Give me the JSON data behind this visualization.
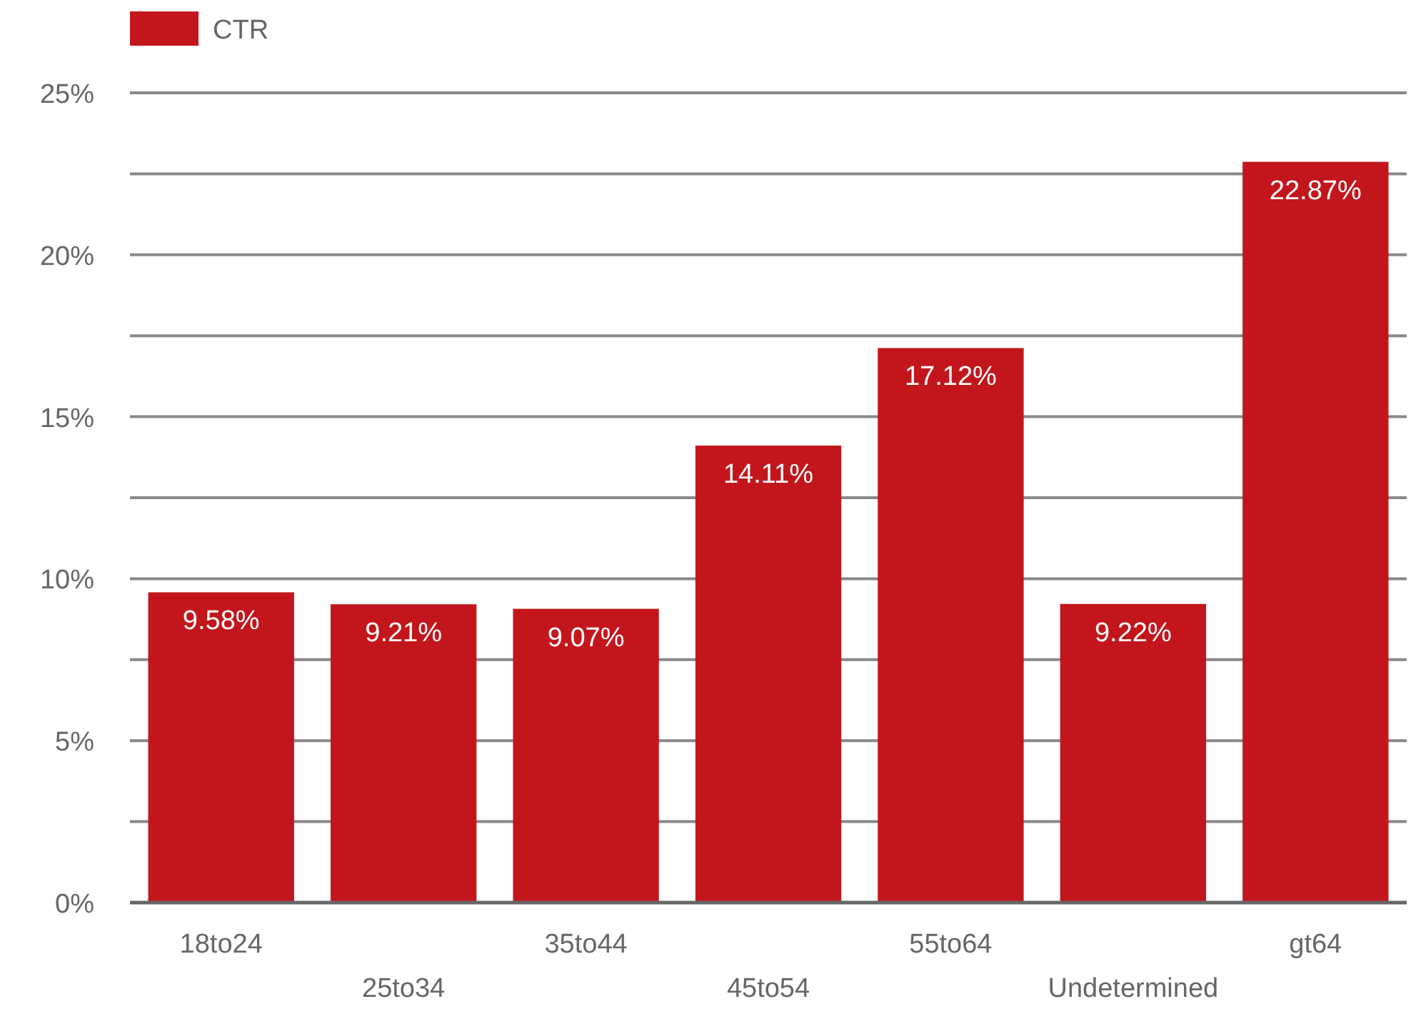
{
  "chart_data": {
    "type": "bar",
    "categories": [
      "18to24",
      "25to34",
      "35to44",
      "45to54",
      "55to64",
      "Undetermined",
      "gt64"
    ],
    "series": [
      {
        "name": "CTR",
        "color": "#c3161c",
        "values": [
          9.58,
          9.21,
          9.07,
          14.11,
          17.12,
          9.22,
          22.87
        ],
        "value_labels": [
          "9.58%",
          "9.21%",
          "9.07%",
          "14.11%",
          "17.12%",
          "9.22%",
          "22.87%"
        ]
      }
    ],
    "ylim": [
      0,
      25
    ],
    "yticks": [
      {
        "value": 0,
        "label": "0%"
      },
      {
        "value": 2.5,
        "label": null
      },
      {
        "value": 5,
        "label": "5%"
      },
      {
        "value": 7.5,
        "label": null
      },
      {
        "value": 10,
        "label": "10%"
      },
      {
        "value": 12.5,
        "label": null
      },
      {
        "value": 15,
        "label": "15%"
      },
      {
        "value": 17.5,
        "label": null
      },
      {
        "value": 20,
        "label": "20%"
      },
      {
        "value": 22.5,
        "label": null
      },
      {
        "value": 25,
        "label": "25%"
      }
    ],
    "grid": "y",
    "legend": "top left"
  }
}
